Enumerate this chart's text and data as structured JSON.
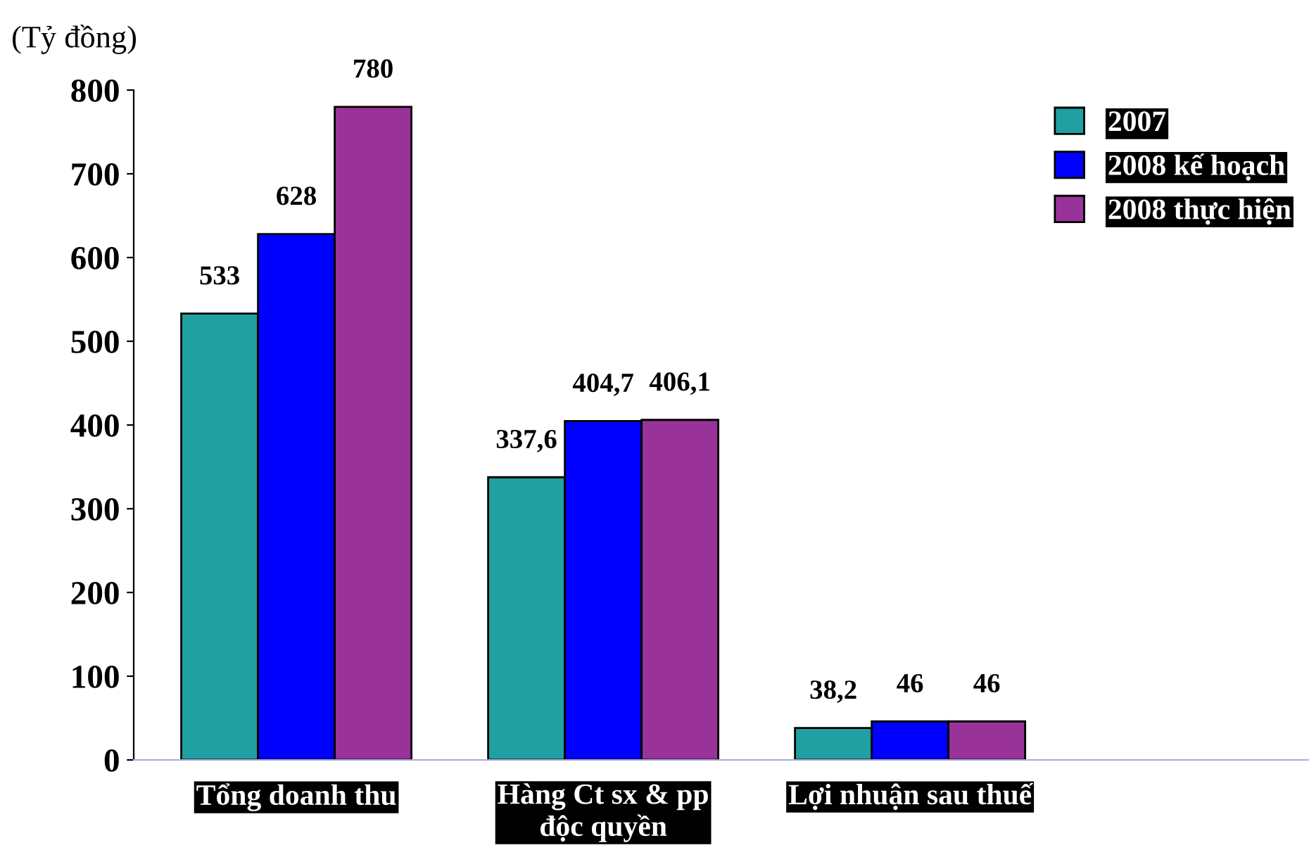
{
  "chart_data": {
    "type": "bar",
    "ylabel": "(Tỷ đồng)",
    "categories": [
      "Tổng doanh thu",
      "Hàng Ct sx & pp\nđộc quyền",
      "Lợi nhuận sau thuế"
    ],
    "series": [
      {
        "name": "2007",
        "color": "#20a0a0",
        "values": [
          533,
          337.6,
          38.2
        ],
        "value_labels": [
          "533",
          "337,6",
          "38,2"
        ]
      },
      {
        "name": "2008 kế hoạch",
        "color": "#0000ff",
        "values": [
          628,
          404.7,
          46
        ],
        "value_labels": [
          "628",
          "404,7",
          "46"
        ]
      },
      {
        "name": "2008 thực hiện",
        "color": "#993399",
        "values": [
          780,
          406.1,
          46
        ],
        "value_labels": [
          "780",
          "406,1",
          "46"
        ]
      }
    ],
    "ylim": [
      0,
      800
    ],
    "yticks": [
      0,
      100,
      200,
      300,
      400,
      500,
      600,
      700,
      800
    ],
    "grid": false,
    "legend": "top right"
  }
}
